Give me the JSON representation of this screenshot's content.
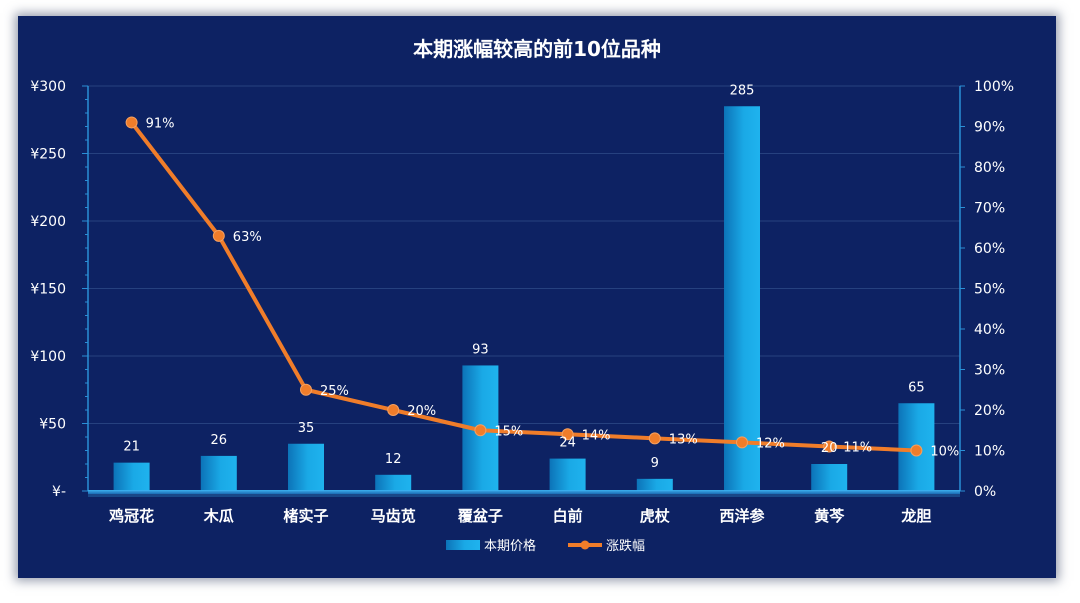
{
  "chart_data": {
    "type": "bar",
    "title": "本期涨幅较高的前10位品种",
    "categories": [
      "鸡冠花",
      "木瓜",
      "楮实子",
      "马齿苋",
      "覆盆子",
      "白前",
      "虎杖",
      "西洋参",
      "黄芩",
      "龙胆"
    ],
    "series": [
      {
        "name": "本期价格",
        "type": "bar",
        "axis": "left",
        "values": [
          21,
          26,
          35,
          12,
          93,
          24,
          9,
          285,
          20,
          65
        ],
        "labels": [
          "21",
          "26",
          "35",
          "12",
          "93",
          "24",
          "9",
          "285",
          "20",
          "65"
        ],
        "color": "#1aa9e6"
      },
      {
        "name": "涨跌幅",
        "type": "line",
        "axis": "right",
        "values": [
          0.91,
          0.63,
          0.25,
          0.2,
          0.15,
          0.14,
          0.13,
          0.12,
          0.11,
          0.1
        ],
        "labels": [
          "91%",
          "63%",
          "25%",
          "20%",
          "15%",
          "14%",
          "13%",
          "12%",
          "11%",
          "10%"
        ],
        "color": "#f07d2a"
      }
    ],
    "y_left": {
      "min": 0,
      "max": 300,
      "ticks": [
        0,
        50,
        100,
        150,
        200,
        250,
        300
      ],
      "tick_labels": [
        "¥-",
        "¥50",
        "¥100",
        "¥150",
        "¥200",
        "¥250",
        "¥300"
      ]
    },
    "y_right": {
      "min": 0,
      "max": 1,
      "ticks": [
        0,
        0.1,
        0.2,
        0.3,
        0.4,
        0.5,
        0.6,
        0.7,
        0.8,
        0.9,
        1.0
      ],
      "tick_labels": [
        "0%",
        "10%",
        "20%",
        "30%",
        "40%",
        "50%",
        "60%",
        "70%",
        "80%",
        "90%",
        "100%"
      ]
    },
    "grid": true,
    "legend": "bottom",
    "colors": {
      "background": "#0d2263",
      "grid": "#26417f",
      "axis": "#2a8fd6",
      "text": "#ffffff"
    }
  }
}
